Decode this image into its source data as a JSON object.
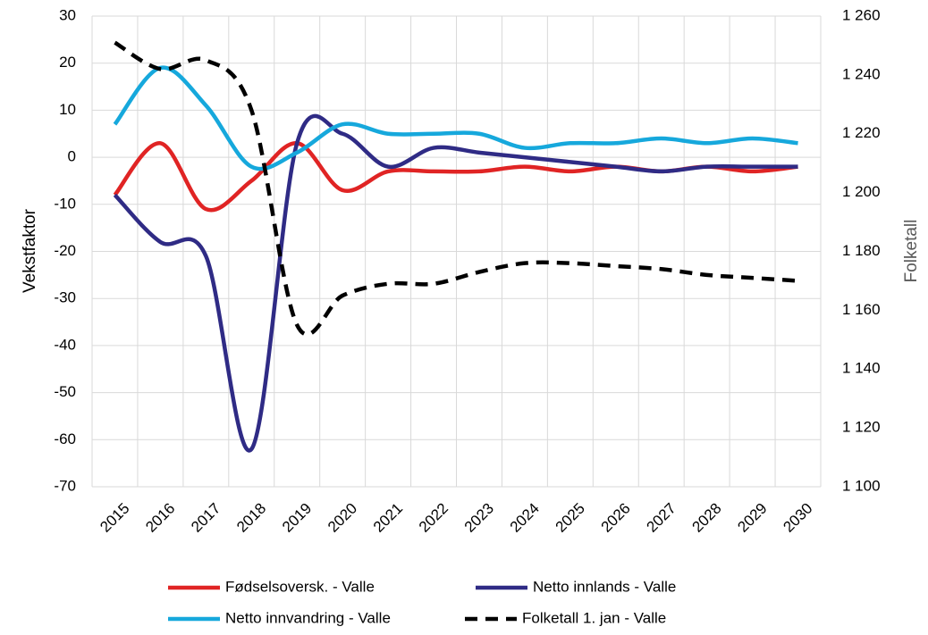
{
  "chart_data": {
    "type": "line",
    "ylabel": "Vekstfaktor",
    "y2label": "Folketall",
    "categories": [
      "2015",
      "2016",
      "2017",
      "2018",
      "2019",
      "2020",
      "2021",
      "2022",
      "2023",
      "2024",
      "2025",
      "2026",
      "2027",
      "2028",
      "2029",
      "2030"
    ],
    "ylim": [
      -70,
      30
    ],
    "yticks": [
      -70,
      -60,
      -50,
      -40,
      -30,
      -20,
      -10,
      0,
      10,
      20,
      30
    ],
    "y2lim": [
      1100,
      1260
    ],
    "y2ticks": [
      {
        "value": 1100,
        "label": "1 100"
      },
      {
        "value": 1120,
        "label": "1 120"
      },
      {
        "value": 1140,
        "label": "1 140"
      },
      {
        "value": 1160,
        "label": "1 160"
      },
      {
        "value": 1180,
        "label": "1 180"
      },
      {
        "value": 1200,
        "label": "1 200"
      },
      {
        "value": 1220,
        "label": "1 220"
      },
      {
        "value": 1240,
        "label": "1 240"
      },
      {
        "value": 1260,
        "label": "1 260"
      }
    ],
    "grid": true,
    "legend": "bottom",
    "series": [
      {
        "name": "Fødselsoversk. - Valle",
        "color": "#e02424",
        "values": [
          -8,
          3,
          -11,
          -5,
          3,
          -7,
          -3,
          -3,
          -3,
          -2,
          -3,
          -2,
          -3,
          -2,
          -3,
          -2
        ]
      },
      {
        "name": "Netto innlands - Valle",
        "color": "#2f2b85",
        "values": [
          -8,
          -18,
          -21,
          -62,
          3,
          5,
          -2,
          2,
          1,
          0,
          -1,
          -2,
          -3,
          -2,
          -2,
          -2
        ]
      },
      {
        "name": "Netto innvandring - Valle",
        "color": "#16a8dc",
        "values": [
          7,
          19,
          11,
          -2,
          1,
          7,
          5,
          5,
          5,
          2,
          3,
          3,
          4,
          3,
          4,
          3
        ]
      },
      {
        "name": "Folketall 1. jan - Valle",
        "color": "#000000",
        "dashed": true,
        "axis": "y2",
        "values": [
          1251,
          1242,
          1245,
          1228,
          1155,
          1165,
          1169,
          1169,
          1173,
          1176,
          1176,
          1175,
          1174,
          1172,
          1171,
          1170
        ]
      }
    ]
  }
}
